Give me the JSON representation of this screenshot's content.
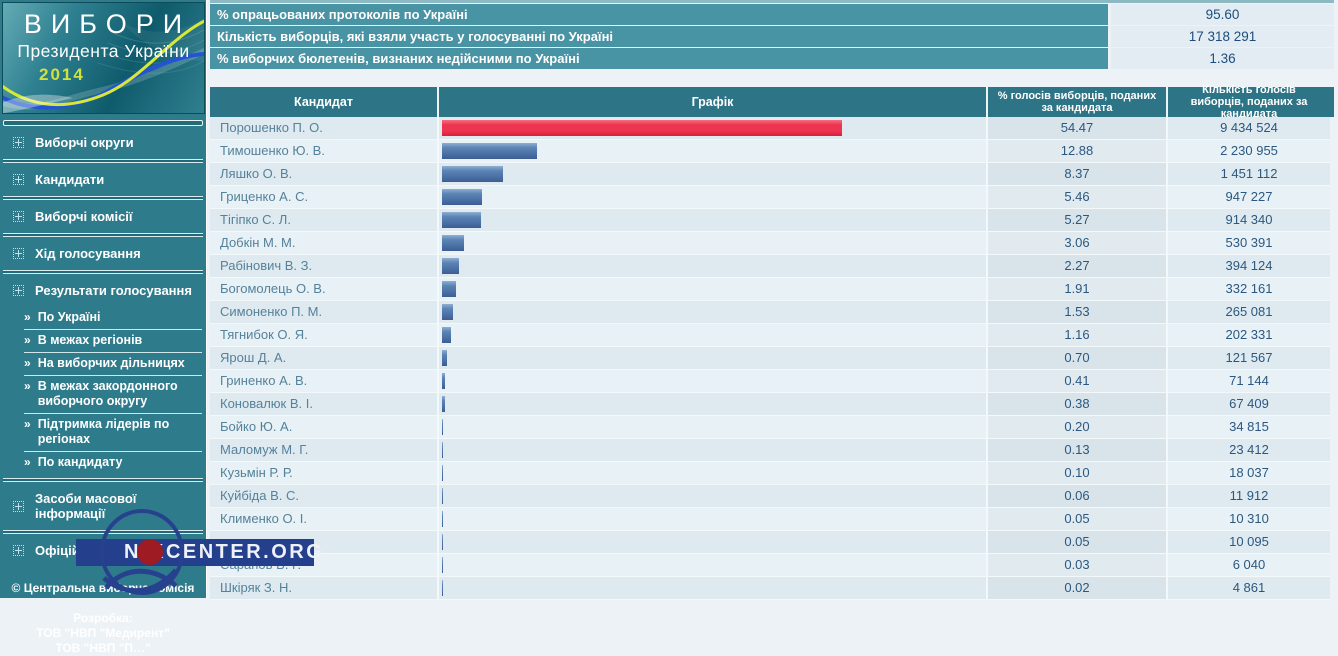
{
  "logo": {
    "title": "ВИБОРИ",
    "subtitle": "Президента України",
    "year": "2014"
  },
  "sidebar": {
    "items": [
      {
        "label": "Виборчі округи"
      },
      {
        "label": "Кандидати"
      },
      {
        "label": "Виборчі комісії"
      },
      {
        "label": "Хід голосування"
      },
      {
        "label": "Результати голосування",
        "children": [
          "По Україні",
          "В межах регіонів",
          "На виборчих дільницях",
          "В межах закордонного виборчого округу",
          "Підтримка лідерів по регіонах",
          "По кандидату"
        ]
      },
      {
        "label": "Засоби масової інформації"
      },
      {
        "label": "Офіційні спостерігачі"
      }
    ],
    "copyright": "© Центральна виборча комісія",
    "dev_label": "Розробка:",
    "dev_line1": "ТОВ \"НВП \"Медирент\"",
    "dev_line2": "ТОВ \"НВП \"П…\""
  },
  "stats": {
    "rows": [
      {
        "label": "% опрацьованих протоколів по Україні",
        "value": "95.60"
      },
      {
        "label": "Кількість виборців, які взяли участь у голосуванні по Україні",
        "value": "17 318 291"
      },
      {
        "label": "% виборчих бюлетенів, визнаних недійсними по Україні",
        "value": "1.36"
      }
    ]
  },
  "table": {
    "headers": [
      "Кандидат",
      "Графік",
      "% голосів виборців, поданих за кандидата",
      "Кількість голосів виборців, поданих за кандидата"
    ]
  },
  "chart_data": {
    "type": "bar",
    "orientation": "horizontal",
    "xlim": [
      0,
      54.47
    ],
    "bar_colors": {
      "leader": "#ee3550",
      "default": "#4a6fa4"
    },
    "rows": [
      {
        "name": "Порошенко П. О.",
        "pct": "54.47",
        "votes": "9 434 524",
        "leader": true
      },
      {
        "name": "Тимошенко Ю. В.",
        "pct": "12.88",
        "votes": "2 230 955"
      },
      {
        "name": "Ляшко О. В.",
        "pct": "8.37",
        "votes": "1 451 112"
      },
      {
        "name": "Гриценко А. С.",
        "pct": "5.46",
        "votes": "947 227"
      },
      {
        "name": "Тігіпко С. Л.",
        "pct": "5.27",
        "votes": "914 340"
      },
      {
        "name": "Добкін М. М.",
        "pct": "3.06",
        "votes": "530 391"
      },
      {
        "name": "Рабінович В. З.",
        "pct": "2.27",
        "votes": "394 124"
      },
      {
        "name": "Богомолець О. В.",
        "pct": "1.91",
        "votes": "332 161"
      },
      {
        "name": "Симоненко П. М.",
        "pct": "1.53",
        "votes": "265 081"
      },
      {
        "name": "Тягнибок О. Я.",
        "pct": "1.16",
        "votes": "202 331"
      },
      {
        "name": "Ярош Д. А.",
        "pct": "0.70",
        "votes": "121 567"
      },
      {
        "name": "Гриненко А. В.",
        "pct": "0.41",
        "votes": "71 144"
      },
      {
        "name": "Коновалюк В. І.",
        "pct": "0.38",
        "votes": "67 409"
      },
      {
        "name": "Бойко Ю. А.",
        "pct": "0.20",
        "votes": "34 815"
      },
      {
        "name": "Маломуж М. Г.",
        "pct": "0.13",
        "votes": "23 412"
      },
      {
        "name": "Кузьмін Р. Р.",
        "pct": "0.10",
        "votes": "18 037"
      },
      {
        "name": "Куйбіда В. С.",
        "pct": "0.06",
        "votes": "11 912"
      },
      {
        "name": "Клименко О. І.",
        "pct": "0.05",
        "votes": "10 310"
      },
      {
        "name": "",
        "pct": "0.05",
        "votes": "10 095"
      },
      {
        "name": "Саранов В. Г.",
        "pct": "0.03",
        "votes": "6 040"
      },
      {
        "name": "Шкіряк З. Н.",
        "pct": "0.02",
        "votes": "4 861"
      }
    ]
  },
  "watermark": {
    "text": "NIKCENTER.ORG"
  }
}
